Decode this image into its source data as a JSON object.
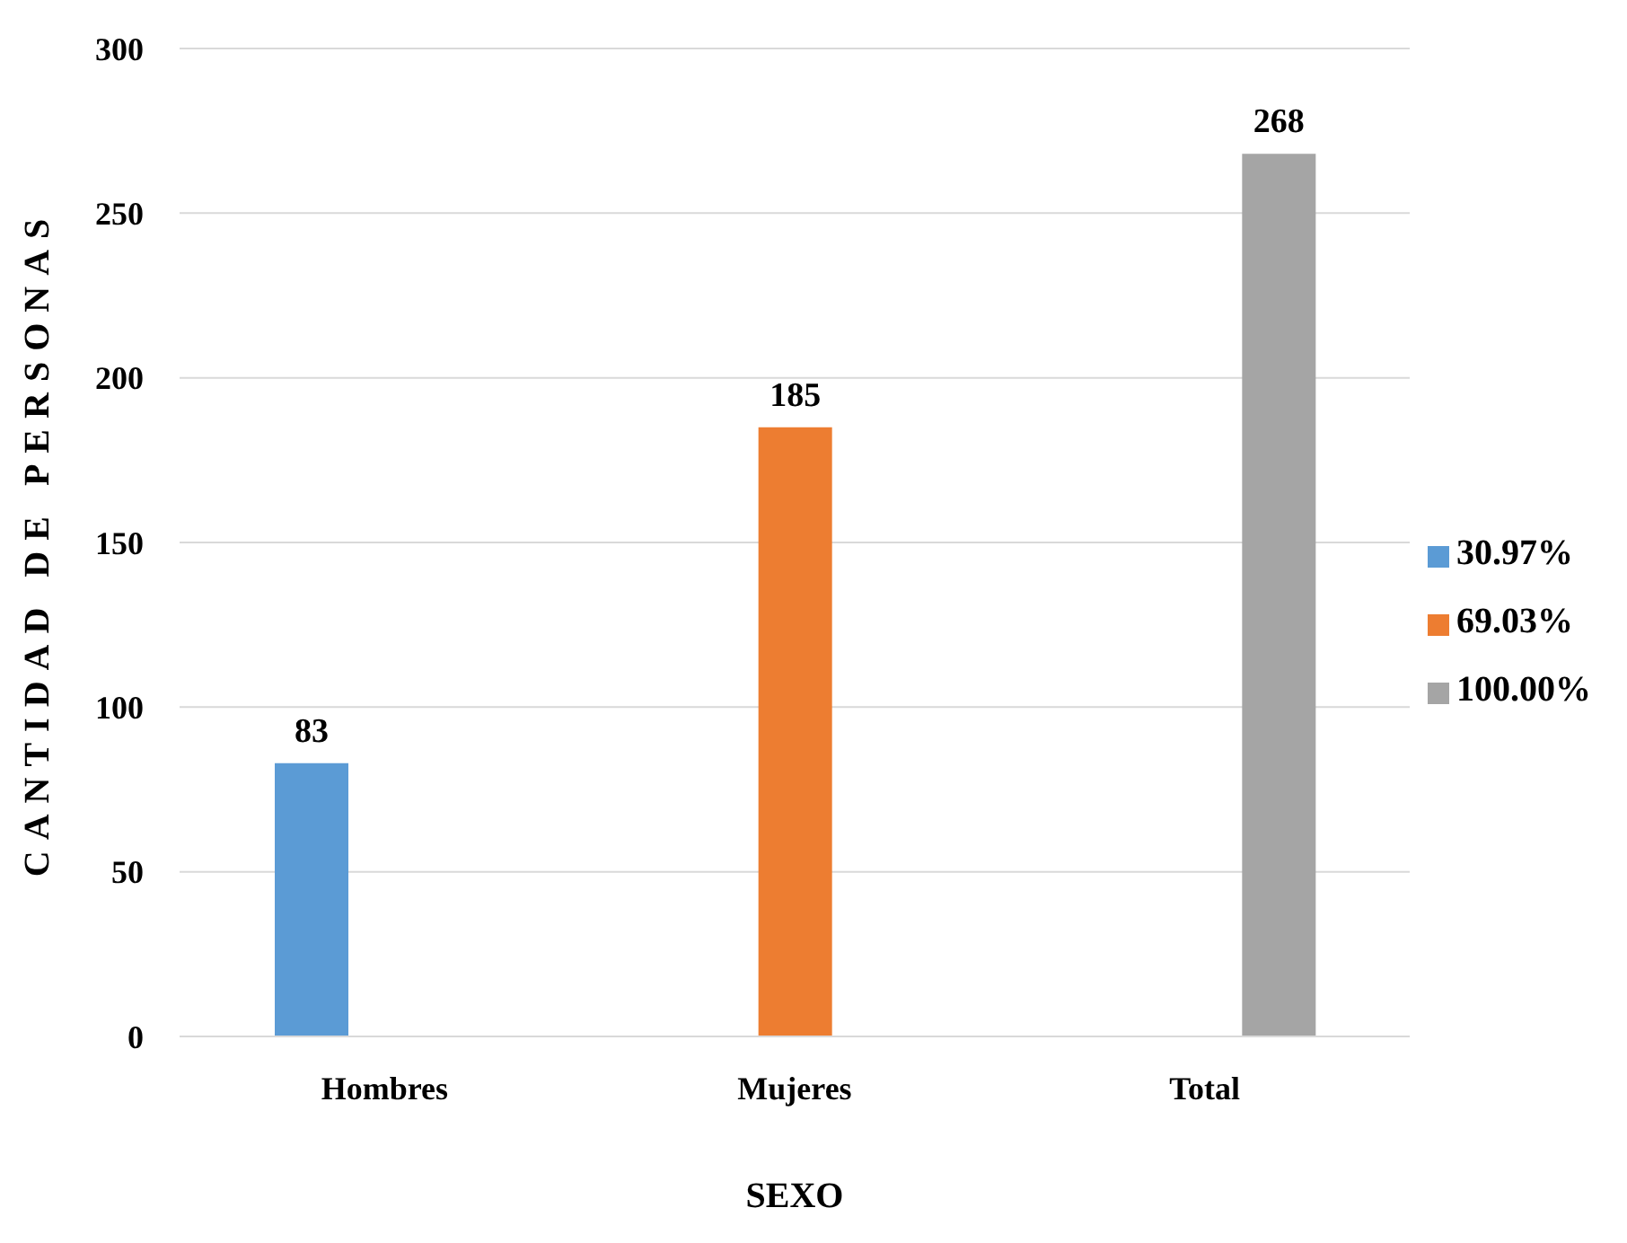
{
  "chart_data": {
    "type": "bar",
    "xlabel": "SEXO",
    "ylabel": "CANTIDAD DE PERSONAS",
    "categories": [
      "Hombres",
      "Mujeres",
      "Total"
    ],
    "series": [
      {
        "name": "30.97%",
        "color": "#5b9bd5",
        "values": [
          83,
          null,
          null
        ]
      },
      {
        "name": "69.03%",
        "color": "#ed7d31",
        "values": [
          null,
          185,
          null
        ]
      },
      {
        "name": "100.00%",
        "color": "#a5a5a5",
        "values": [
          null,
          null,
          268
        ]
      }
    ],
    "ylim": [
      0,
      300
    ],
    "yticks": [
      0,
      50,
      100,
      150,
      200,
      250,
      300
    ],
    "grid": "y",
    "legend": "right",
    "data_labels": true
  }
}
